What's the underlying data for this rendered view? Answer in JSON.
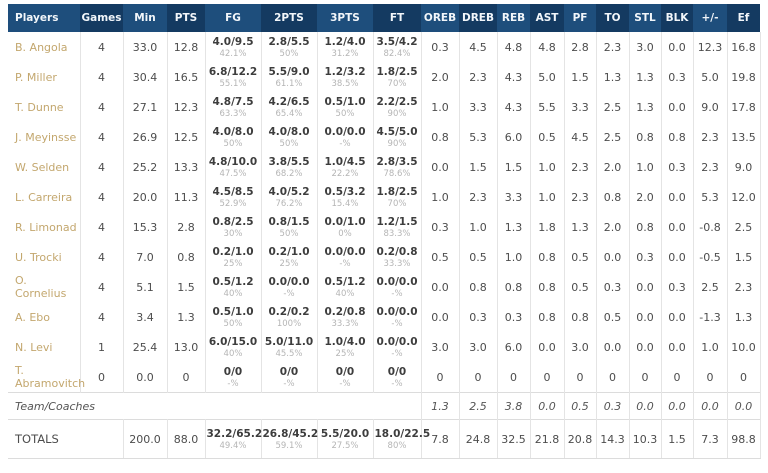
{
  "table": {
    "columns": [
      "Players",
      "Games",
      "Min",
      "PTS",
      "FG",
      "2PTS",
      "3PTS",
      "FT",
      "OREB",
      "DREB",
      "REB",
      "AST",
      "PF",
      "TO",
      "STL",
      "BLK",
      "+/-",
      "Ef"
    ],
    "rows": [
      {
        "name": "B. Angola",
        "games": "4",
        "min": "33.0",
        "pts": "12.8",
        "fg": {
          "v": "4.0/9.5",
          "pct": "42.1%"
        },
        "p2": {
          "v": "2.8/5.5",
          "pct": "50%"
        },
        "p3": {
          "v": "1.2/4.0",
          "pct": "31.2%"
        },
        "ft": {
          "v": "3.5/4.2",
          "pct": "82.4%"
        },
        "oreb": "0.3",
        "dreb": "4.5",
        "reb": "4.8",
        "ast": "4.8",
        "pf": "2.8",
        "to": "2.3",
        "stl": "3.0",
        "blk": "0.0",
        "pm": "12.3",
        "ef": "16.8"
      },
      {
        "name": "P. Miller",
        "games": "4",
        "min": "30.4",
        "pts": "16.5",
        "fg": {
          "v": "6.8/12.2",
          "pct": "55.1%"
        },
        "p2": {
          "v": "5.5/9.0",
          "pct": "61.1%"
        },
        "p3": {
          "v": "1.2/3.2",
          "pct": "38.5%"
        },
        "ft": {
          "v": "1.8/2.5",
          "pct": "70%"
        },
        "oreb": "2.0",
        "dreb": "2.3",
        "reb": "4.3",
        "ast": "5.0",
        "pf": "1.5",
        "to": "1.3",
        "stl": "1.3",
        "blk": "0.3",
        "pm": "5.0",
        "ef": "19.8"
      },
      {
        "name": "T. Dunne",
        "games": "4",
        "min": "27.1",
        "pts": "12.3",
        "fg": {
          "v": "4.8/7.5",
          "pct": "63.3%"
        },
        "p2": {
          "v": "4.2/6.5",
          "pct": "65.4%"
        },
        "p3": {
          "v": "0.5/1.0",
          "pct": "50%"
        },
        "ft": {
          "v": "2.2/2.5",
          "pct": "90%"
        },
        "oreb": "1.0",
        "dreb": "3.3",
        "reb": "4.3",
        "ast": "5.5",
        "pf": "3.3",
        "to": "2.5",
        "stl": "1.3",
        "blk": "0.0",
        "pm": "9.0",
        "ef": "17.8"
      },
      {
        "name": "J. Meyinsse",
        "games": "4",
        "min": "26.9",
        "pts": "12.5",
        "fg": {
          "v": "4.0/8.0",
          "pct": "50%"
        },
        "p2": {
          "v": "4.0/8.0",
          "pct": "50%"
        },
        "p3": {
          "v": "0.0/0.0",
          "pct": "-%"
        },
        "ft": {
          "v": "4.5/5.0",
          "pct": "90%"
        },
        "oreb": "0.8",
        "dreb": "5.3",
        "reb": "6.0",
        "ast": "0.5",
        "pf": "4.5",
        "to": "2.5",
        "stl": "0.8",
        "blk": "0.8",
        "pm": "2.3",
        "ef": "13.5"
      },
      {
        "name": "W. Selden",
        "games": "4",
        "min": "25.2",
        "pts": "13.3",
        "fg": {
          "v": "4.8/10.0",
          "pct": "47.5%"
        },
        "p2": {
          "v": "3.8/5.5",
          "pct": "68.2%"
        },
        "p3": {
          "v": "1.0/4.5",
          "pct": "22.2%"
        },
        "ft": {
          "v": "2.8/3.5",
          "pct": "78.6%"
        },
        "oreb": "0.0",
        "dreb": "1.5",
        "reb": "1.5",
        "ast": "1.0",
        "pf": "2.3",
        "to": "2.0",
        "stl": "1.0",
        "blk": "0.3",
        "pm": "2.3",
        "ef": "9.0"
      },
      {
        "name": "L. Carreira",
        "games": "4",
        "min": "20.0",
        "pts": "11.3",
        "fg": {
          "v": "4.5/8.5",
          "pct": "52.9%"
        },
        "p2": {
          "v": "4.0/5.2",
          "pct": "76.2%"
        },
        "p3": {
          "v": "0.5/3.2",
          "pct": "15.4%"
        },
        "ft": {
          "v": "1.8/2.5",
          "pct": "70%"
        },
        "oreb": "1.0",
        "dreb": "2.3",
        "reb": "3.3",
        "ast": "1.0",
        "pf": "2.3",
        "to": "0.8",
        "stl": "2.0",
        "blk": "0.0",
        "pm": "5.3",
        "ef": "12.0"
      },
      {
        "name": "R. Limonad",
        "games": "4",
        "min": "15.3",
        "pts": "2.8",
        "fg": {
          "v": "0.8/2.5",
          "pct": "30%"
        },
        "p2": {
          "v": "0.8/1.5",
          "pct": "50%"
        },
        "p3": {
          "v": "0.0/1.0",
          "pct": "0%"
        },
        "ft": {
          "v": "1.2/1.5",
          "pct": "83.3%"
        },
        "oreb": "0.3",
        "dreb": "1.0",
        "reb": "1.3",
        "ast": "1.8",
        "pf": "1.3",
        "to": "2.0",
        "stl": "0.8",
        "blk": "0.0",
        "pm": "-0.8",
        "ef": "2.5"
      },
      {
        "name": "U. Trocki",
        "games": "4",
        "min": "7.0",
        "pts": "0.8",
        "fg": {
          "v": "0.2/1.0",
          "pct": "25%"
        },
        "p2": {
          "v": "0.2/1.0",
          "pct": "25%"
        },
        "p3": {
          "v": "0.0/0.0",
          "pct": "-%"
        },
        "ft": {
          "v": "0.2/0.8",
          "pct": "33.3%"
        },
        "oreb": "0.5",
        "dreb": "0.5",
        "reb": "1.0",
        "ast": "0.8",
        "pf": "0.5",
        "to": "0.0",
        "stl": "0.3",
        "blk": "0.0",
        "pm": "-0.5",
        "ef": "1.5"
      },
      {
        "name": "O. Cornelius",
        "games": "4",
        "min": "5.1",
        "pts": "1.5",
        "fg": {
          "v": "0.5/1.2",
          "pct": "40%"
        },
        "p2": {
          "v": "0.0/0.0",
          "pct": "-%"
        },
        "p3": {
          "v": "0.5/1.2",
          "pct": "40%"
        },
        "ft": {
          "v": "0.0/0.0",
          "pct": "-%"
        },
        "oreb": "0.0",
        "dreb": "0.8",
        "reb": "0.8",
        "ast": "0.8",
        "pf": "0.5",
        "to": "0.3",
        "stl": "0.0",
        "blk": "0.3",
        "pm": "2.5",
        "ef": "2.3"
      },
      {
        "name": "A. Ebo",
        "games": "4",
        "min": "3.4",
        "pts": "1.3",
        "fg": {
          "v": "0.5/1.0",
          "pct": "50%"
        },
        "p2": {
          "v": "0.2/0.2",
          "pct": "100%"
        },
        "p3": {
          "v": "0.2/0.8",
          "pct": "33.3%"
        },
        "ft": {
          "v": "0.0/0.0",
          "pct": "-%"
        },
        "oreb": "0.0",
        "dreb": "0.3",
        "reb": "0.3",
        "ast": "0.8",
        "pf": "0.8",
        "to": "0.5",
        "stl": "0.0",
        "blk": "0.0",
        "pm": "-1.3",
        "ef": "1.3"
      },
      {
        "name": "N. Levi",
        "games": "1",
        "min": "25.4",
        "pts": "13.0",
        "fg": {
          "v": "6.0/15.0",
          "pct": "40%"
        },
        "p2": {
          "v": "5.0/11.0",
          "pct": "45.5%"
        },
        "p3": {
          "v": "1.0/4.0",
          "pct": "25%"
        },
        "ft": {
          "v": "0.0/0.0",
          "pct": "-%"
        },
        "oreb": "3.0",
        "dreb": "3.0",
        "reb": "6.0",
        "ast": "0.0",
        "pf": "3.0",
        "to": "0.0",
        "stl": "0.0",
        "blk": "0.0",
        "pm": "1.0",
        "ef": "10.0"
      },
      {
        "name": "T. Abramovitch",
        "games": "0",
        "min": "0.0",
        "pts": "0",
        "fg": {
          "v": "0/0",
          "pct": "-%"
        },
        "p2": {
          "v": "0/0",
          "pct": "-%"
        },
        "p3": {
          "v": "0/0",
          "pct": "-%"
        },
        "ft": {
          "v": "0/0",
          "pct": "-%"
        },
        "oreb": "0",
        "dreb": "0",
        "reb": "0",
        "ast": "0",
        "pf": "0",
        "to": "0",
        "stl": "0",
        "blk": "0",
        "pm": "0",
        "ef": "0"
      }
    ],
    "team_coaches": {
      "label": "Team/Coaches",
      "oreb": "1.3",
      "dreb": "2.5",
      "reb": "3.8",
      "ast": "0.0",
      "pf": "0.5",
      "to": "0.3",
      "stl": "0.0",
      "blk": "0.0",
      "pm": "0.0",
      "ef": "0.0"
    },
    "totals": {
      "label": "TOTALS",
      "min": "200.0",
      "pts": "88.0",
      "fg": {
        "v": "32.2/65.2",
        "pct": "49.4%"
      },
      "p2": {
        "v": "26.8/45.2",
        "pct": "59.1%"
      },
      "p3": {
        "v": "5.5/20.0",
        "pct": "27.5%"
      },
      "ft": {
        "v": "18.0/22.5",
        "pct": "80%"
      },
      "oreb": "7.8",
      "dreb": "24.8",
      "reb": "32.5",
      "ast": "21.8",
      "pf": "20.8",
      "to": "14.3",
      "stl": "10.3",
      "blk": "1.5",
      "pm": "7.3",
      "ef": "98.8"
    },
    "colors": {
      "header_light": "#1e4e7c",
      "header_dark": "#143a61",
      "player_name": "#c3a76e",
      "stat_text": "#4d4d4d",
      "percent_text": "#b5b5b5"
    }
  }
}
